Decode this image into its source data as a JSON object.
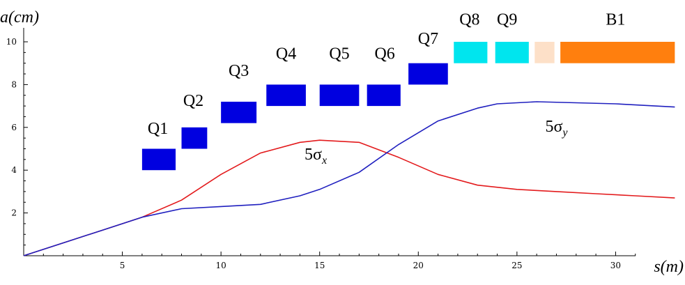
{
  "chart_data": {
    "type": "line",
    "xlabel": "s(m)",
    "ylabel": "a(cm)",
    "xlim": [
      0,
      33
    ],
    "ylim": [
      0,
      10.5
    ],
    "x_ticks": [
      5,
      10,
      15,
      20,
      25,
      30
    ],
    "y_ticks": [
      2,
      4,
      6,
      8,
      10
    ],
    "grid": false,
    "series": [
      {
        "name": "5σx",
        "label_main": "5σ",
        "label_sub": "x",
        "label_pos": [
          14.8,
          4.5
        ],
        "color": "#e31a1c",
        "x": [
          0,
          2,
          4,
          6,
          8,
          10,
          12,
          14,
          15,
          17,
          19,
          21,
          23,
          25,
          27,
          29,
          31,
          33
        ],
        "y": [
          0,
          0.6,
          1.2,
          1.8,
          2.6,
          3.8,
          4.8,
          5.3,
          5.4,
          5.3,
          4.6,
          3.8,
          3.3,
          3.1,
          3.0,
          2.9,
          2.8,
          2.7
        ]
      },
      {
        "name": "5σy",
        "label_main": "5σ",
        "label_sub": "y",
        "label_pos": [
          27,
          5.8
        ],
        "color": "#1f1fbf",
        "x": [
          0,
          2,
          4,
          6,
          8,
          10,
          12,
          14,
          15,
          17,
          19,
          21,
          23,
          24,
          25,
          26,
          28,
          30,
          33
        ],
        "y": [
          0,
          0.6,
          1.2,
          1.8,
          2.2,
          2.3,
          2.4,
          2.8,
          3.1,
          3.9,
          5.2,
          6.3,
          6.9,
          7.1,
          7.15,
          7.2,
          7.15,
          7.1,
          6.95
        ]
      }
    ],
    "magnets": [
      {
        "label": "Q1",
        "x0": 6.0,
        "x1": 7.7,
        "y0": 4.0,
        "y1": 5.0,
        "color": "#0000e0",
        "label_x": 6.8,
        "label_y": 5.7
      },
      {
        "label": "Q2",
        "x0": 8.0,
        "x1": 9.3,
        "y0": 5.0,
        "y1": 6.0,
        "color": "#0000e0",
        "label_x": 8.6,
        "label_y": 7.0
      },
      {
        "label": "Q3",
        "x0": 10.0,
        "x1": 11.8,
        "y0": 6.2,
        "y1": 7.2,
        "color": "#0000e0",
        "label_x": 10.9,
        "label_y": 8.4
      },
      {
        "label": "Q4",
        "x0": 12.3,
        "x1": 14.3,
        "y0": 7.0,
        "y1": 8.0,
        "color": "#0000e0",
        "label_x": 13.3,
        "label_y": 9.2
      },
      {
        "label": "Q5",
        "x0": 15.0,
        "x1": 17.0,
        "y0": 7.0,
        "y1": 8.0,
        "color": "#0000e0",
        "label_x": 16.0,
        "label_y": 9.2
      },
      {
        "label": "Q6",
        "x0": 17.4,
        "x1": 19.1,
        "y0": 7.0,
        "y1": 8.0,
        "color": "#0000e0",
        "label_x": 18.3,
        "label_y": 9.2
      },
      {
        "label": "Q7",
        "x0": 19.5,
        "x1": 21.5,
        "y0": 8.0,
        "y1": 9.0,
        "color": "#0000e0",
        "label_x": 20.5,
        "label_y": 9.9
      },
      {
        "label": "Q8",
        "x0": 21.8,
        "x1": 23.5,
        "y0": 9.0,
        "y1": 10.0,
        "color": "#00e5ee",
        "label_x": 22.6,
        "label_y": 10.8
      },
      {
        "label": "Q9",
        "x0": 23.9,
        "x1": 25.6,
        "y0": 9.0,
        "y1": 10.0,
        "color": "#00e5ee",
        "label_x": 24.5,
        "label_y": 10.8
      },
      {
        "label": "",
        "x0": 25.9,
        "x1": 26.9,
        "y0": 9.0,
        "y1": 10.0,
        "color": "#fde0c8",
        "label_x": 26.4,
        "label_y": 10.8
      },
      {
        "label": "B1",
        "x0": 27.2,
        "x1": 33.0,
        "y0": 9.0,
        "y1": 10.0,
        "color": "#ff7f0e",
        "label_x": 30.0,
        "label_y": 10.8
      }
    ]
  }
}
